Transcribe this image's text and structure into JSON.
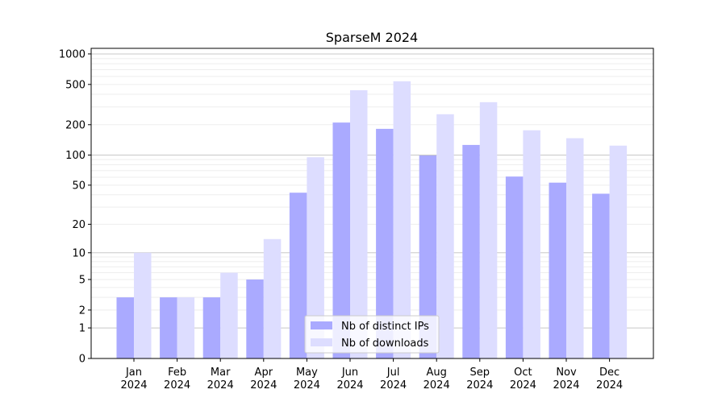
{
  "chart_data": {
    "type": "bar",
    "title": "SparseM 2024",
    "xlabel": "",
    "ylabel": "",
    "yscale": "log(1+x)",
    "ylim": [
      0,
      1200
    ],
    "yticks": [
      0,
      1,
      2,
      5,
      10,
      20,
      50,
      100,
      200,
      500,
      1000
    ],
    "grid": true,
    "legend_position": "bottom-center",
    "categories": [
      "Jan\n2024",
      "Feb\n2024",
      "Mar\n2024",
      "Apr\n2024",
      "May\n2024",
      "Jun\n2024",
      "Jul\n2024",
      "Aug\n2024",
      "Sep\n2024",
      "Oct\n2024",
      "Nov\n2024",
      "Dec\n2024"
    ],
    "series": [
      {
        "name": "Nb of distinct IPs",
        "color": "#aaaaff",
        "values": [
          3,
          3,
          3,
          5,
          42,
          210,
          182,
          99,
          126,
          61,
          53,
          41
        ]
      },
      {
        "name": "Nb of downloads",
        "color": "#ddddff",
        "values": [
          10,
          3,
          6,
          14,
          95,
          438,
          537,
          254,
          334,
          176,
          147,
          124
        ]
      }
    ]
  }
}
